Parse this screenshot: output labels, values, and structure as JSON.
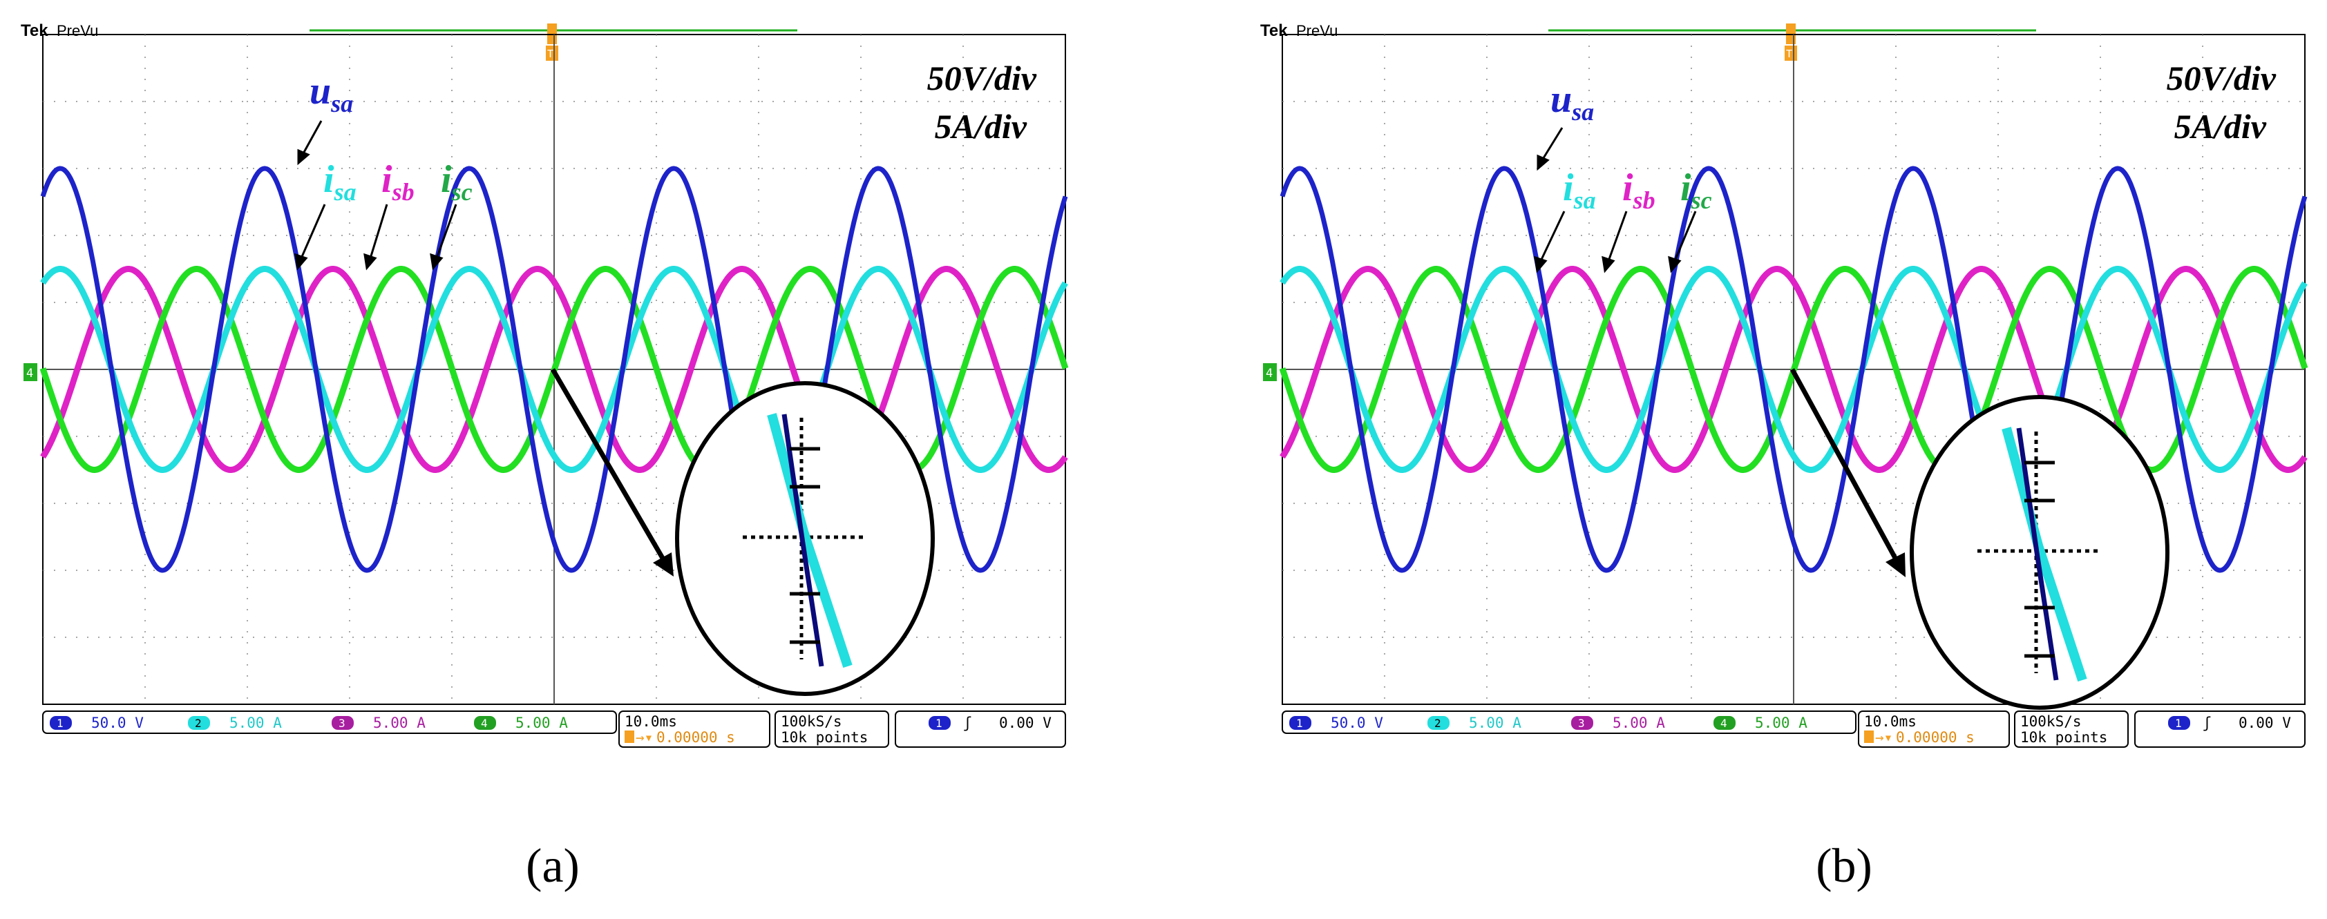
{
  "colors": {
    "usa": "#1d23c9",
    "isa": "#22dede",
    "isb": "#df22c6",
    "isc": "#22df22",
    "trigger": "#f5a020",
    "grid": "#8a8a8a",
    "ink": "#000000"
  },
  "shared": {
    "brand": "Tek",
    "mode": "PreVu",
    "scale_line1": "50V/div",
    "scale_line2": "5A/div",
    "ch_numbers": [
      "1",
      "2",
      "3",
      "4"
    ],
    "ch_values": [
      "50.0 V",
      "5.00 A",
      "5.00 A",
      "5.00 A"
    ],
    "timebase": "10.0ms",
    "delay": "0.00000 s",
    "sample_rate": "100kS/s",
    "record": "10k points",
    "trig_source": "1",
    "trig_level": "0.00 V",
    "trig_marker": "T",
    "ground_marker": "4",
    "labels": {
      "usa": {
        "main": "u",
        "sub": "sa"
      },
      "isa": {
        "main": "i",
        "sub": "sa"
      },
      "isb": {
        "main": "i",
        "sub": "sb"
      },
      "isc": {
        "main": "i",
        "sub": "sc"
      }
    }
  },
  "panels": [
    {
      "caption": "(a)"
    },
    {
      "caption": "(b)"
    }
  ],
  "chart_data": [
    {
      "type": "line",
      "panel": "(a)",
      "x_unit": "ms",
      "x_divisions": 10,
      "x_per_div_ms": 10,
      "y_divisions": 10,
      "series": [
        {
          "key": "usa",
          "name": "u_sa",
          "amplitude_div": 3.0,
          "period_ms": 20,
          "phase_deg": 0
        },
        {
          "key": "isa",
          "name": "i_sa",
          "amplitude_div": 1.5,
          "period_ms": 20,
          "phase_deg": 0
        },
        {
          "key": "isb",
          "name": "i_sb",
          "amplitude_div": 1.5,
          "period_ms": 20,
          "phase_deg": -120
        },
        {
          "key": "isc",
          "name": "i_sc",
          "amplitude_div": 1.5,
          "period_ms": 20,
          "phase_deg": 120
        }
      ]
    },
    {
      "type": "line",
      "panel": "(b)",
      "x_unit": "ms",
      "x_divisions": 10,
      "x_per_div_ms": 10,
      "y_divisions": 10,
      "series": [
        {
          "key": "usa",
          "name": "u_sa",
          "amplitude_div": 3.0,
          "period_ms": 20,
          "phase_deg": 0
        },
        {
          "key": "isa",
          "name": "i_sa",
          "amplitude_div": 1.5,
          "period_ms": 20,
          "phase_deg": 0
        },
        {
          "key": "isb",
          "name": "i_sb",
          "amplitude_div": 1.5,
          "period_ms": 20,
          "phase_deg": -120
        },
        {
          "key": "isc",
          "name": "i_sc",
          "amplitude_div": 1.5,
          "period_ms": 20,
          "phase_deg": 120
        }
      ]
    }
  ]
}
